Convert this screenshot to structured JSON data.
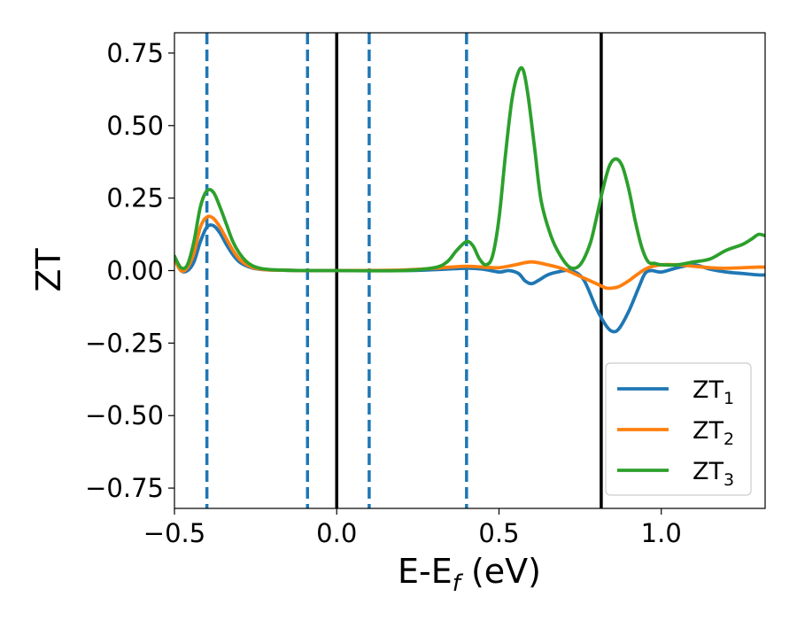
{
  "chart_data": {
    "type": "line",
    "xlabel": {
      "main": "E-E",
      "sub": "f",
      "unit": " (eV)"
    },
    "ylabel": "ZT",
    "xlim": [
      -0.5,
      1.32
    ],
    "ylim": [
      -0.82,
      0.82
    ],
    "xticks": [
      -0.5,
      0.0,
      0.5,
      1.0
    ],
    "xtick_labels": [
      "−0.5",
      "0.0",
      "0.5",
      "1.0"
    ],
    "yticks": [
      0.75,
      0.5,
      0.25,
      0.0,
      -0.25,
      -0.5,
      -0.75
    ],
    "ytick_labels": [
      "0.75",
      "0.50",
      "0.25",
      "0.00",
      "−0.25",
      "−0.50",
      "−0.75"
    ],
    "grid": false,
    "legend_position": "bottom-right",
    "vlines": [
      {
        "x": -0.4,
        "style": "dashed",
        "color": "#1f77b4"
      },
      {
        "x": -0.09,
        "style": "dashed",
        "color": "#1f77b4"
      },
      {
        "x": 0.0,
        "style": "solid",
        "color": "#000000"
      },
      {
        "x": 0.1,
        "style": "dashed",
        "color": "#1f77b4"
      },
      {
        "x": 0.4,
        "style": "dashed",
        "color": "#1f77b4"
      },
      {
        "x": 0.815,
        "style": "solid",
        "color": "#000000"
      }
    ],
    "series": [
      {
        "name": "ZT",
        "sub": "1",
        "color": "#1f77b4",
        "x": [
          -0.5,
          -0.48,
          -0.46,
          -0.44,
          -0.42,
          -0.4,
          -0.38,
          -0.36,
          -0.34,
          -0.32,
          -0.3,
          -0.28,
          -0.26,
          -0.24,
          -0.22,
          -0.2,
          -0.15,
          -0.1,
          0.0,
          0.2,
          0.3,
          0.4,
          0.45,
          0.5,
          0.53,
          0.56,
          0.58,
          0.6,
          0.62,
          0.65,
          0.68,
          0.72,
          0.76,
          0.8,
          0.83,
          0.85,
          0.87,
          0.9,
          0.93,
          0.95,
          0.97,
          1.0,
          1.05,
          1.1,
          1.15,
          1.2,
          1.25,
          1.3,
          1.32
        ],
        "y": [
          0.04,
          0.0,
          0.0,
          0.03,
          0.1,
          0.15,
          0.155,
          0.13,
          0.09,
          0.055,
          0.03,
          0.017,
          0.009,
          0.005,
          0.003,
          0.002,
          0.001,
          0.0,
          0.0,
          0.0,
          0.003,
          0.008,
          0.005,
          -0.005,
          0.0,
          -0.01,
          -0.035,
          -0.045,
          -0.035,
          -0.015,
          -0.005,
          0.0,
          -0.03,
          -0.13,
          -0.19,
          -0.21,
          -0.2,
          -0.14,
          -0.06,
          -0.01,
          0.0,
          -0.005,
          0.01,
          0.02,
          0.005,
          -0.005,
          -0.01,
          -0.015,
          -0.015
        ]
      },
      {
        "name": "ZT",
        "sub": "2",
        "color": "#ff7f0e",
        "x": [
          -0.5,
          -0.48,
          -0.46,
          -0.44,
          -0.42,
          -0.4,
          -0.38,
          -0.36,
          -0.34,
          -0.32,
          -0.3,
          -0.28,
          -0.26,
          -0.24,
          -0.22,
          -0.2,
          -0.15,
          -0.1,
          0.0,
          0.2,
          0.3,
          0.35,
          0.4,
          0.45,
          0.5,
          0.55,
          0.6,
          0.65,
          0.7,
          0.75,
          0.8,
          0.83,
          0.85,
          0.87,
          0.9,
          0.93,
          0.96,
          1.0,
          1.05,
          1.1,
          1.15,
          1.2,
          1.25,
          1.3,
          1.32
        ],
        "y": [
          0.04,
          0.0,
          0.01,
          0.06,
          0.15,
          0.185,
          0.18,
          0.15,
          0.11,
          0.07,
          0.04,
          0.022,
          0.011,
          0.006,
          0.003,
          0.002,
          0.001,
          0.0,
          0.0,
          0.002,
          0.008,
          0.012,
          0.015,
          0.012,
          0.01,
          0.02,
          0.03,
          0.02,
          0.005,
          -0.02,
          -0.045,
          -0.06,
          -0.06,
          -0.055,
          -0.035,
          -0.01,
          0.01,
          0.02,
          0.02,
          0.015,
          0.01,
          0.008,
          0.01,
          0.012,
          0.012
        ]
      },
      {
        "name": "ZT",
        "sub": "3",
        "color": "#2ca02c",
        "x": [
          -0.5,
          -0.48,
          -0.46,
          -0.44,
          -0.42,
          -0.4,
          -0.38,
          -0.36,
          -0.34,
          -0.32,
          -0.3,
          -0.28,
          -0.26,
          -0.24,
          -0.22,
          -0.2,
          -0.15,
          -0.1,
          0.0,
          0.2,
          0.3,
          0.34,
          0.37,
          0.4,
          0.42,
          0.44,
          0.46,
          0.48,
          0.5,
          0.52,
          0.54,
          0.56,
          0.575,
          0.59,
          0.61,
          0.63,
          0.66,
          0.69,
          0.72,
          0.75,
          0.78,
          0.8,
          0.82,
          0.84,
          0.86,
          0.88,
          0.9,
          0.92,
          0.94,
          0.96,
          0.98,
          1.0,
          1.05,
          1.1,
          1.15,
          1.2,
          1.25,
          1.28,
          1.3,
          1.32
        ],
        "y": [
          0.05,
          0.01,
          0.02,
          0.1,
          0.22,
          0.275,
          0.27,
          0.22,
          0.16,
          0.1,
          0.06,
          0.033,
          0.017,
          0.009,
          0.005,
          0.003,
          0.001,
          0.0,
          0.0,
          0.0,
          0.01,
          0.03,
          0.07,
          0.1,
          0.085,
          0.04,
          0.02,
          0.05,
          0.18,
          0.4,
          0.59,
          0.685,
          0.69,
          0.6,
          0.42,
          0.24,
          0.12,
          0.05,
          0.01,
          0.02,
          0.09,
          0.18,
          0.28,
          0.36,
          0.385,
          0.36,
          0.28,
          0.17,
          0.08,
          0.03,
          0.025,
          0.02,
          0.02,
          0.03,
          0.04,
          0.07,
          0.09,
          0.11,
          0.125,
          0.12
        ]
      }
    ]
  }
}
